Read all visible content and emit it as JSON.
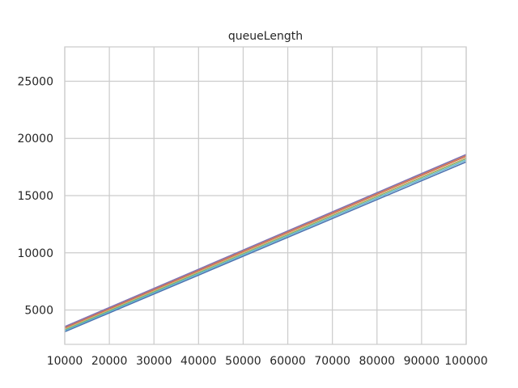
{
  "chart_data": {
    "type": "line",
    "title": "queueLength",
    "xlabel": "",
    "ylabel": "",
    "xlim": [
      10000,
      100000
    ],
    "ylim": [
      2000,
      28000
    ],
    "x_ticks": [
      10000,
      20000,
      30000,
      40000,
      50000,
      60000,
      70000,
      80000,
      90000,
      100000
    ],
    "y_ticks": [
      5000,
      10000,
      15000,
      20000,
      25000
    ],
    "grid": true,
    "x": [
      10000,
      100000
    ],
    "series": [
      {
        "color": "#4c72b0",
        "values": [
          3100,
          17950
        ]
      },
      {
        "color": "#64b5cd",
        "values": [
          3200,
          18100
        ]
      },
      {
        "color": "#55a868",
        "values": [
          3300,
          18250
        ]
      },
      {
        "color": "#ccb974",
        "values": [
          3350,
          18300
        ]
      },
      {
        "color": "#c44e52",
        "values": [
          3450,
          18450
        ]
      },
      {
        "color": "#dd8452",
        "values": [
          3500,
          18500
        ]
      },
      {
        "color": "#8172b3",
        "values": [
          3550,
          18600
        ]
      }
    ]
  }
}
